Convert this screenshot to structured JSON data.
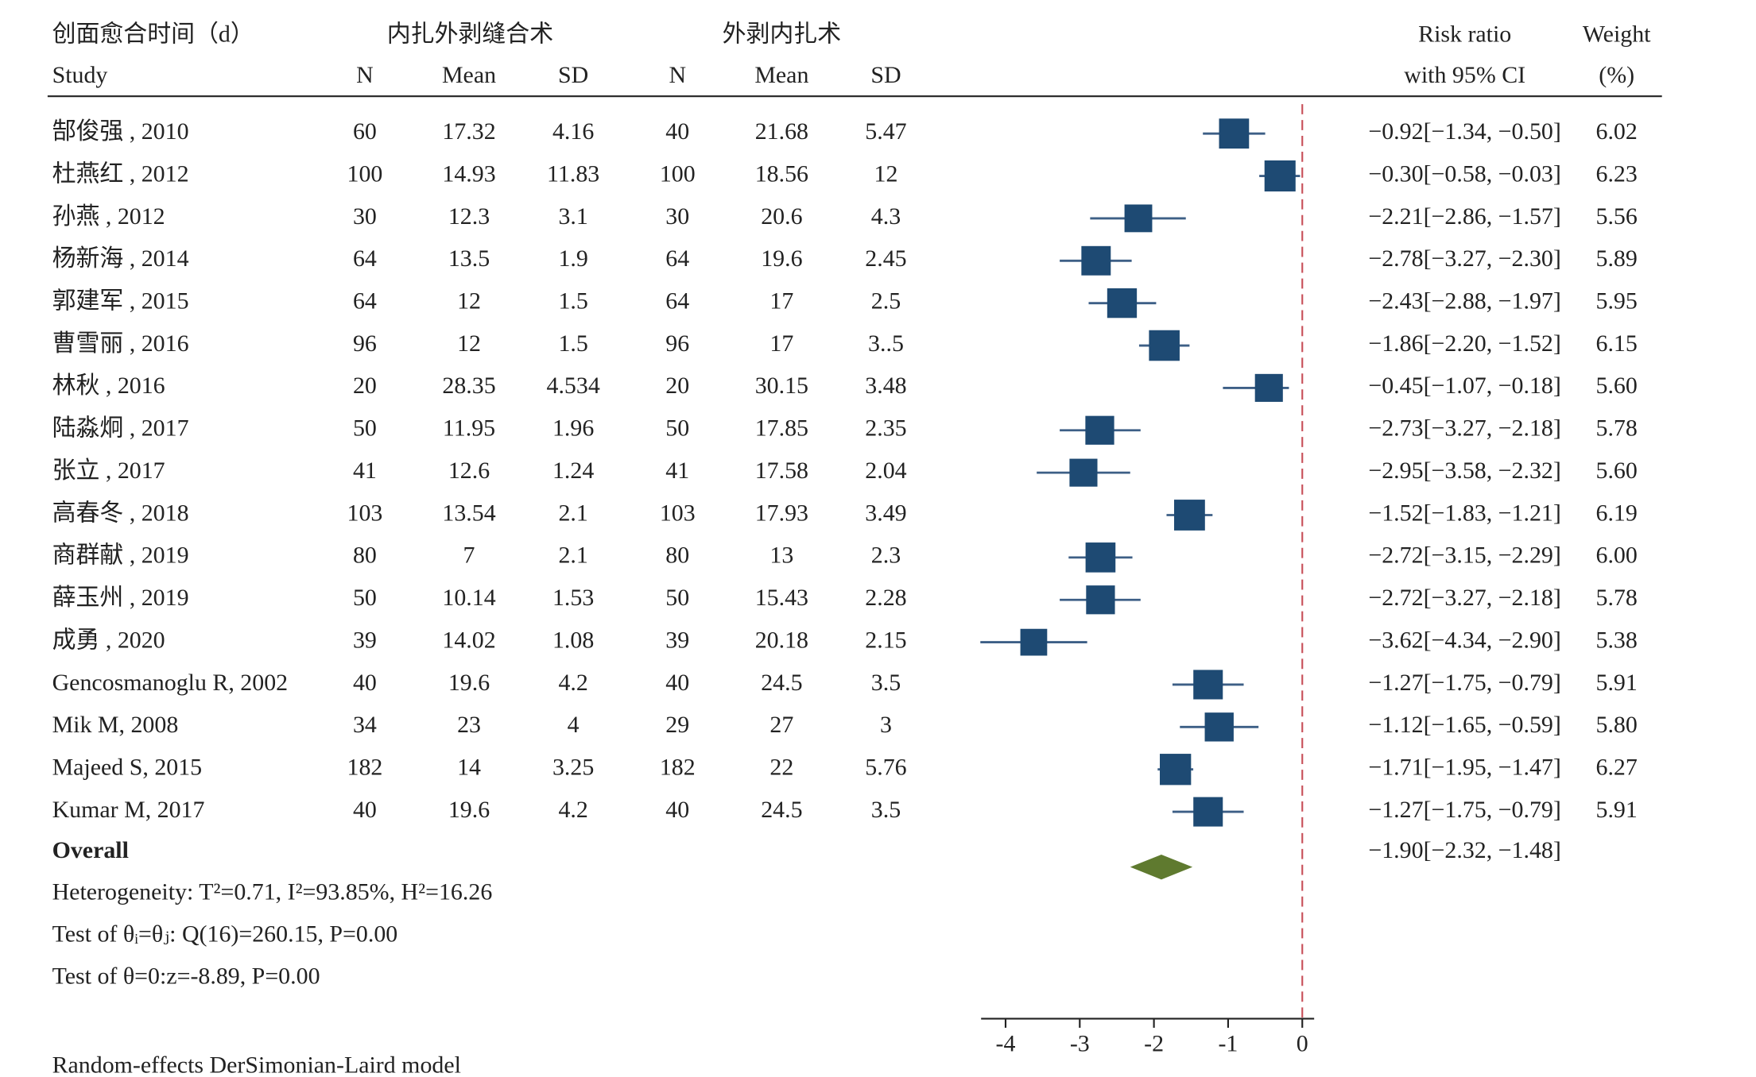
{
  "chart_data": {
    "type": "forest",
    "headers": {
      "outcome": "创面愈合时间（d）",
      "group1": "内扎外剥缝合术",
      "group2": "外剥内扎术",
      "study": "Study",
      "columns": [
        "N",
        "Mean",
        "SD",
        "N",
        "Mean",
        "SD"
      ],
      "effect": "Risk ratio",
      "effect_sub": "with 95% CI",
      "weight": "Weight",
      "weight_sub": "(%)"
    },
    "studies": [
      {
        "name": "郜俊强 , 2010",
        "cells": [
          "60",
          "17.32",
          "4.16",
          "40",
          "21.68",
          "5.47"
        ],
        "est": -0.92,
        "lo": -1.34,
        "hi": -0.5,
        "ci_label": "−0.92[−1.34, −0.50]",
        "weight": 6.02,
        "weight_label": "6.02"
      },
      {
        "name": "杜燕红 , 2012",
        "cells": [
          "100",
          "14.93",
          "11.83",
          "100",
          "18.56",
          "12"
        ],
        "est": -0.3,
        "lo": -0.58,
        "hi": -0.03,
        "ci_label": "−0.30[−0.58, −0.03]",
        "weight": 6.23,
        "weight_label": "6.23"
      },
      {
        "name": "孙燕 , 2012",
        "cells": [
          "30",
          "12.3",
          "3.1",
          "30",
          "20.6",
          "4.3"
        ],
        "est": -2.21,
        "lo": -2.86,
        "hi": -1.57,
        "ci_label": "−2.21[−2.86, −1.57]",
        "weight": 5.56,
        "weight_label": "5.56"
      },
      {
        "name": "杨新海 , 2014",
        "cells": [
          "64",
          "13.5",
          "1.9",
          "64",
          "19.6",
          "2.45"
        ],
        "est": -2.78,
        "lo": -3.27,
        "hi": -2.3,
        "ci_label": "−2.78[−3.27, −2.30]",
        "weight": 5.89,
        "weight_label": "5.89"
      },
      {
        "name": "郭建军 , 2015",
        "cells": [
          "64",
          "12",
          "1.5",
          "64",
          "17",
          "2.5"
        ],
        "est": -2.43,
        "lo": -2.88,
        "hi": -1.97,
        "ci_label": "−2.43[−2.88, −1.97]",
        "weight": 5.95,
        "weight_label": "5.95"
      },
      {
        "name": "曹雪丽 , 2016",
        "cells": [
          "96",
          "12",
          "1.5",
          "96",
          "17",
          "3..5"
        ],
        "est": -1.86,
        "lo": -2.2,
        "hi": -1.52,
        "ci_label": "−1.86[−2.20, −1.52]",
        "weight": 6.15,
        "weight_label": "6.15"
      },
      {
        "name": "林秋 , 2016",
        "cells": [
          "20",
          "28.35",
          "4.534",
          "20",
          "30.15",
          "3.48"
        ],
        "est": -0.45,
        "lo": -1.07,
        "hi": -0.18,
        "ci_label": "−0.45[−1.07, −0.18]",
        "weight": 5.6,
        "weight_label": "5.60"
      },
      {
        "name": "陆淼炯 , 2017",
        "cells": [
          "50",
          "11.95",
          "1.96",
          "50",
          "17.85",
          "2.35"
        ],
        "est": -2.73,
        "lo": -3.27,
        "hi": -2.18,
        "ci_label": "−2.73[−3.27, −2.18]",
        "weight": 5.78,
        "weight_label": "5.78"
      },
      {
        "name": "张立 , 2017",
        "cells": [
          "41",
          "12.6",
          "1.24",
          "41",
          "17.58",
          "2.04"
        ],
        "est": -2.95,
        "lo": -3.58,
        "hi": -2.32,
        "ci_label": "−2.95[−3.58, −2.32]",
        "weight": 5.6,
        "weight_label": "5.60"
      },
      {
        "name": "高春冬 , 2018",
        "cells": [
          "103",
          "13.54",
          "2.1",
          "103",
          "17.93",
          "3.49"
        ],
        "est": -1.52,
        "lo": -1.83,
        "hi": -1.21,
        "ci_label": "−1.52[−1.83, −1.21]",
        "weight": 6.19,
        "weight_label": "6.19"
      },
      {
        "name": "商群献 , 2019",
        "cells": [
          "80",
          "7",
          "2.1",
          "80",
          "13",
          "2.3"
        ],
        "est": -2.72,
        "lo": -3.15,
        "hi": -2.29,
        "ci_label": "−2.72[−3.15, −2.29]",
        "weight": 6.0,
        "weight_label": "6.00"
      },
      {
        "name": "薛玉州 , 2019",
        "cells": [
          "50",
          "10.14",
          "1.53",
          "50",
          "15.43",
          "2.28"
        ],
        "est": -2.72,
        "lo": -3.27,
        "hi": -2.18,
        "ci_label": "−2.72[−3.27, −2.18]",
        "weight": 5.78,
        "weight_label": "5.78"
      },
      {
        "name": "成勇 , 2020",
        "cells": [
          "39",
          "14.02",
          "1.08",
          "39",
          "20.18",
          "2.15"
        ],
        "est": -3.62,
        "lo": -4.34,
        "hi": -2.9,
        "ci_label": "−3.62[−4.34, −2.90]",
        "weight": 5.38,
        "weight_label": "5.38"
      },
      {
        "name": "Gencosmanoglu R, 2002",
        "cells": [
          "40",
          "19.6",
          "4.2",
          "40",
          "24.5",
          "3.5"
        ],
        "est": -1.27,
        "lo": -1.75,
        "hi": -0.79,
        "ci_label": "−1.27[−1.75, −0.79]",
        "weight": 5.91,
        "weight_label": "5.91"
      },
      {
        "name": "Mik M, 2008",
        "cells": [
          "34",
          "23",
          "4",
          "29",
          "27",
          "3"
        ],
        "est": -1.12,
        "lo": -1.65,
        "hi": -0.59,
        "ci_label": "−1.12[−1.65, −0.59]",
        "weight": 5.8,
        "weight_label": "5.80"
      },
      {
        "name": "Majeed S, 2015",
        "cells": [
          "182",
          "14",
          "3.25",
          "182",
          "22",
          "5.76"
        ],
        "est": -1.71,
        "lo": -1.95,
        "hi": -1.47,
        "ci_label": "−1.71[−1.95, −1.47]",
        "weight": 6.27,
        "weight_label": "6.27"
      },
      {
        "name": "Kumar M, 2017",
        "cells": [
          "40",
          "19.6",
          "4.2",
          "40",
          "24.5",
          "3.5"
        ],
        "est": -1.27,
        "lo": -1.75,
        "hi": -0.79,
        "ci_label": "−1.27[−1.75, −0.79]",
        "weight": 5.91,
        "weight_label": "5.91"
      }
    ],
    "overall": {
      "name": "Overall",
      "est": -1.9,
      "lo": -2.32,
      "hi": -1.48,
      "ci_label": "−1.90[−2.32, −1.48]"
    },
    "notes": [
      "Heterogeneity: T²=0.71, I²=93.85%, H²=16.26",
      "Test of θᵢ=θⱼ: Q(16)=260.15, P=0.00",
      "Test of θ=0:z=-8.89, P=0.00"
    ],
    "footer": "Random-effects DerSimonian-Laird model",
    "xlim": [
      -4.33,
      0.16
    ],
    "xticks": [
      -4,
      -3,
      -2,
      -1,
      0
    ],
    "ref_line": 0,
    "box_color": "#1e4a73",
    "whisker_color": "#3d5f86",
    "diamond_color": "#5f7a2f",
    "ref_color": "#c8505a"
  }
}
